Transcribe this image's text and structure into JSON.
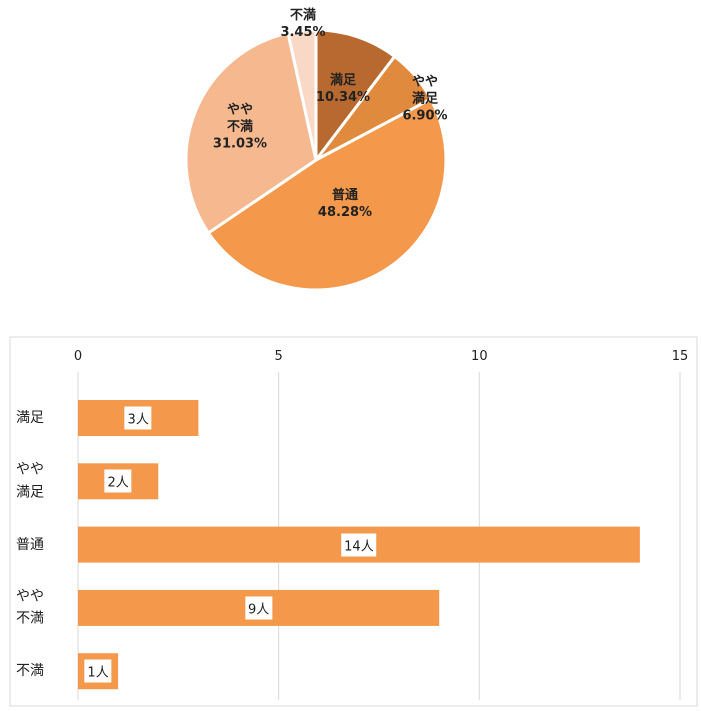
{
  "chart_data": [
    {
      "type": "pie",
      "categories": [
        "満足",
        "やや満足",
        "普通",
        "やや不満",
        "不満"
      ],
      "values": [
        10.34,
        6.9,
        48.28,
        31.03,
        3.45
      ],
      "value_labels": [
        "10.34%",
        "6.90%",
        "48.28%",
        "31.03%",
        "3.45%"
      ],
      "colors": [
        "#b8692f",
        "#e08a3e",
        "#f4984b",
        "#f6b98f",
        "#f9d9c6"
      ]
    },
    {
      "type": "bar",
      "orientation": "horizontal",
      "categories": [
        "満足",
        "やや満足",
        "普通",
        "やや不満",
        "不満"
      ],
      "values": [
        3,
        2,
        14,
        9,
        1
      ],
      "value_labels": [
        "3人",
        "2人",
        "14人",
        "9人",
        "1人"
      ],
      "color": "#f4984b",
      "xlim": [
        0,
        15
      ],
      "xticks": [
        0,
        5,
        10,
        15
      ],
      "grid": true
    }
  ]
}
